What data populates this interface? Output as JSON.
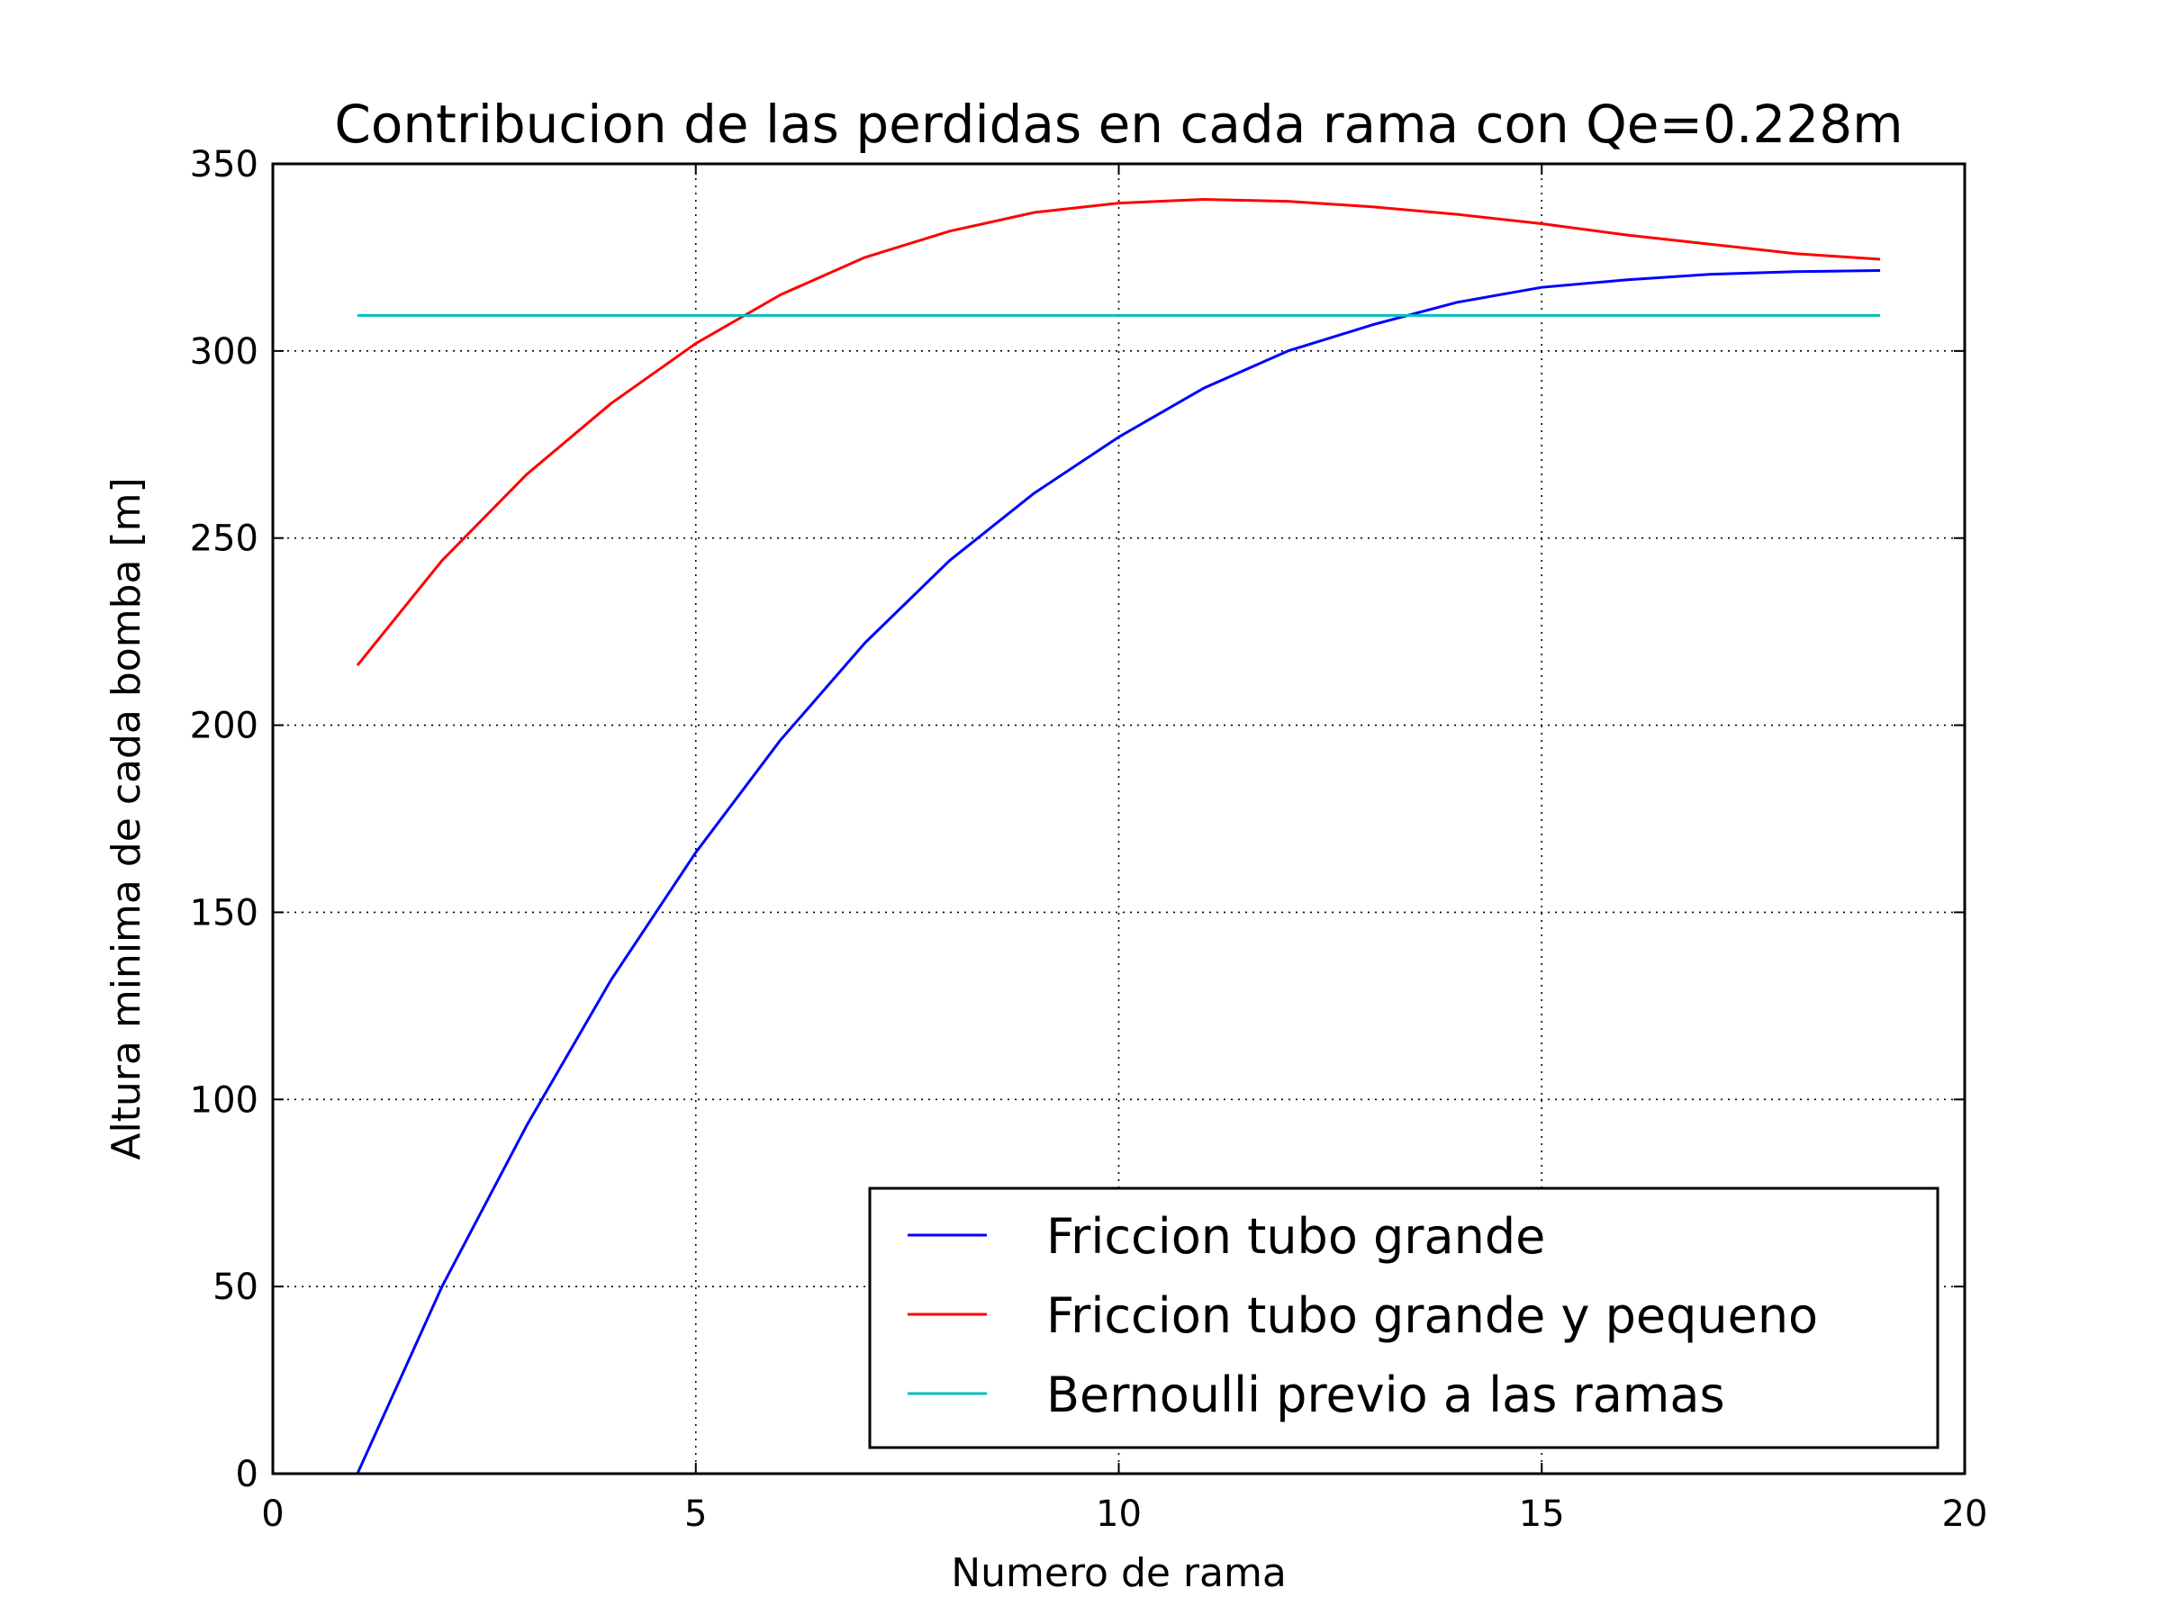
{
  "chart_data": {
    "type": "line",
    "title": "Contribucion de las perdidas en cada rama con Qe=0.228m",
    "xlabel": "Numero de rama",
    "ylabel": "Altura minima de cada bomba [m]",
    "xlim": [
      0,
      20
    ],
    "ylim": [
      0,
      350
    ],
    "xticks": [
      0,
      5,
      10,
      15,
      20
    ],
    "yticks": [
      0,
      50,
      100,
      150,
      200,
      250,
      300,
      350
    ],
    "xtick_labels": [
      "0",
      "5",
      "10",
      "15",
      "20"
    ],
    "ytick_labels": [
      "0",
      "50",
      "100",
      "150",
      "200",
      "250",
      "300",
      "350"
    ],
    "grid": true,
    "legend_position": "lower-right",
    "x": [
      1,
      2,
      3,
      4,
      5,
      6,
      7,
      8,
      9,
      10,
      11,
      12,
      13,
      14,
      15,
      16,
      17,
      18,
      19
    ],
    "series": [
      {
        "name": "Friccion tubo grande",
        "color": "#0000ff",
        "values": [
          0,
          50,
          93,
          132,
          166,
          196,
          222,
          244,
          262,
          277,
          290,
          300,
          307,
          313,
          317,
          319,
          320.5,
          321.2,
          321.5
        ]
      },
      {
        "name": "Friccion tubo grande y pequeno",
        "color": "#ff0000",
        "values": [
          216,
          244,
          267,
          286,
          302,
          315,
          325,
          332,
          337,
          339.5,
          340.5,
          340,
          338.5,
          336.5,
          334,
          331,
          328.5,
          326,
          324.5
        ]
      },
      {
        "name": "Bernoulli previo a las ramas",
        "color": "#00bfbf",
        "values": [
          309.5,
          309.5,
          309.5,
          309.5,
          309.5,
          309.5,
          309.5,
          309.5,
          309.5,
          309.5,
          309.5,
          309.5,
          309.5,
          309.5,
          309.5,
          309.5,
          309.5,
          309.5,
          309.5
        ]
      }
    ]
  }
}
